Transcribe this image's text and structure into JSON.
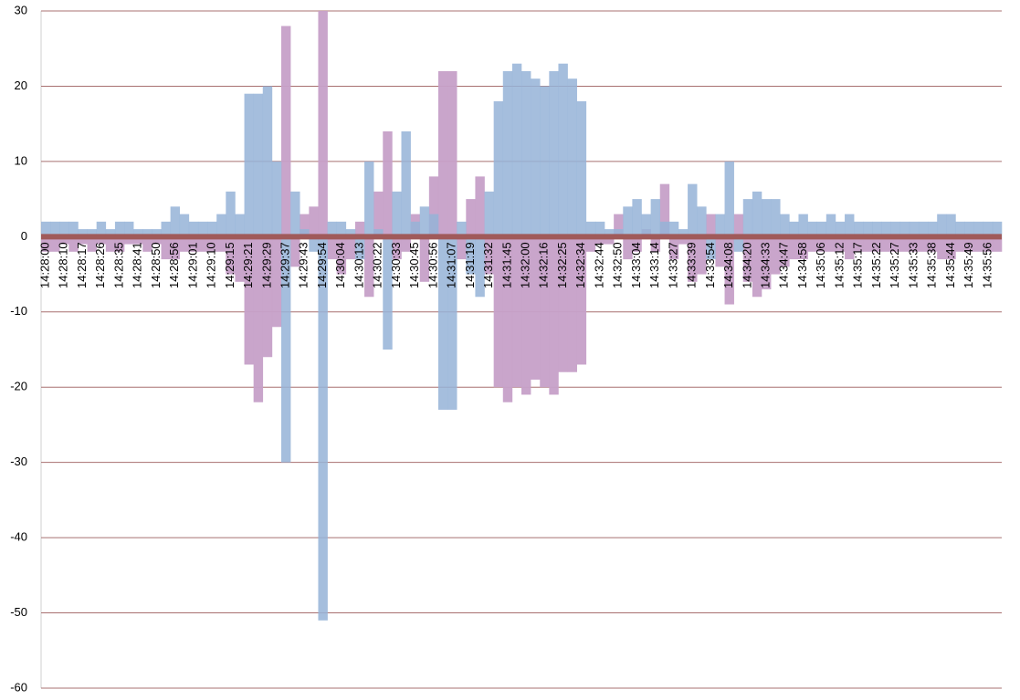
{
  "chart_data": {
    "type": "bar",
    "categories": [
      "14:28:00",
      null,
      "14:28:10",
      null,
      "14:28:17",
      null,
      "14:28:26",
      null,
      "14:28:35",
      null,
      "14:28:41",
      null,
      "14:28:50",
      null,
      "14:28:56",
      null,
      "14:29:01",
      null,
      "14:29:10",
      null,
      "14:29:15",
      null,
      "14:29:21",
      null,
      "14:29:29",
      null,
      "14:29:37",
      null,
      "14:29:43",
      null,
      "14:29:54",
      null,
      "14:30:04",
      null,
      "14:30:13",
      null,
      "14:30:22",
      null,
      "14:30:33",
      null,
      "14:30:45",
      null,
      "14:30:56",
      null,
      "14:31:07",
      null,
      "14:31:19",
      null,
      "14:31:32",
      null,
      "14:31:45",
      null,
      "14:32:00",
      null,
      "14:32:16",
      null,
      "14:32:25",
      null,
      "14:32:34",
      null,
      "14:32:44",
      null,
      "14:32:50",
      null,
      "14:33:04",
      null,
      "14:33:14",
      null,
      "14:33:27",
      null,
      "14:33:39",
      null,
      "14:33:54",
      null,
      "14:34:08",
      null,
      "14:34:20",
      null,
      "14:34:33",
      null,
      "14:34:47",
      null,
      "14:34:58",
      null,
      "14:35:06",
      null,
      "14:35:12",
      null,
      "14:35:17",
      null,
      "14:35:22",
      null,
      "14:35:27",
      null,
      "14:35:33",
      null,
      "14:35:38",
      null,
      "14:35:44",
      null,
      "14:35:49",
      null,
      "14:35:56",
      null
    ],
    "series": [
      {
        "color": "#95b3d7",
        "values": [
          2,
          2,
          2,
          2,
          1,
          1,
          2,
          1,
          2,
          2,
          1,
          1,
          1,
          2,
          4,
          3,
          2,
          2,
          2,
          3,
          6,
          3,
          19,
          19,
          20,
          10,
          -30,
          6,
          1,
          -2,
          -51,
          2,
          2,
          1,
          -3,
          10,
          1,
          -15,
          6,
          14,
          2,
          4,
          3,
          -23,
          -23,
          2,
          -5,
          -8,
          6,
          18,
          22,
          23,
          22,
          21,
          20,
          22,
          23,
          21,
          18,
          2,
          2,
          1,
          1,
          4,
          5,
          3,
          5,
          2,
          2,
          1,
          7,
          4,
          -3,
          3,
          10,
          -2,
          5,
          6,
          5,
          5,
          3,
          2,
          3,
          2,
          2,
          3,
          2,
          3,
          2,
          2,
          2,
          2,
          2,
          2,
          2,
          2,
          2,
          3,
          3,
          2,
          2,
          2,
          2,
          2
        ]
      },
      {
        "color": "#c6a0c8",
        "values": [
          -2,
          -2,
          -1,
          -2,
          -1,
          -2,
          -1,
          -2,
          -2,
          -1,
          -1,
          -2,
          -1,
          -3,
          -3,
          -2,
          -2,
          -2,
          -2,
          -2,
          -5,
          -6,
          -17,
          -22,
          -16,
          -12,
          28,
          -4,
          3,
          4,
          30,
          -3,
          -5,
          -3,
          2,
          -8,
          6,
          14,
          -3,
          -2,
          3,
          -6,
          8,
          22,
          22,
          -3,
          5,
          8,
          -5,
          -20,
          -22,
          -20,
          -21,
          -19,
          -20,
          -21,
          -18,
          -18,
          -17,
          -2,
          -1,
          -1,
          3,
          -3,
          -2,
          1,
          -2,
          7,
          -3,
          -1,
          -6,
          -5,
          3,
          -4,
          -9,
          3,
          -6,
          -8,
          -7,
          -5,
          -4,
          -3,
          -3,
          -2,
          -2,
          -2,
          -2,
          -3,
          -2,
          -2,
          -2,
          -2,
          -2,
          -2,
          -2,
          -2,
          -2,
          -3,
          -3,
          -2,
          -2,
          -2,
          -2,
          -2
        ]
      }
    ],
    "ylim": [
      -60,
      30
    ],
    "yticks": [
      30,
      20,
      10,
      0,
      -10,
      -20,
      -30,
      -40,
      -50,
      -60
    ],
    "grid": true
  }
}
